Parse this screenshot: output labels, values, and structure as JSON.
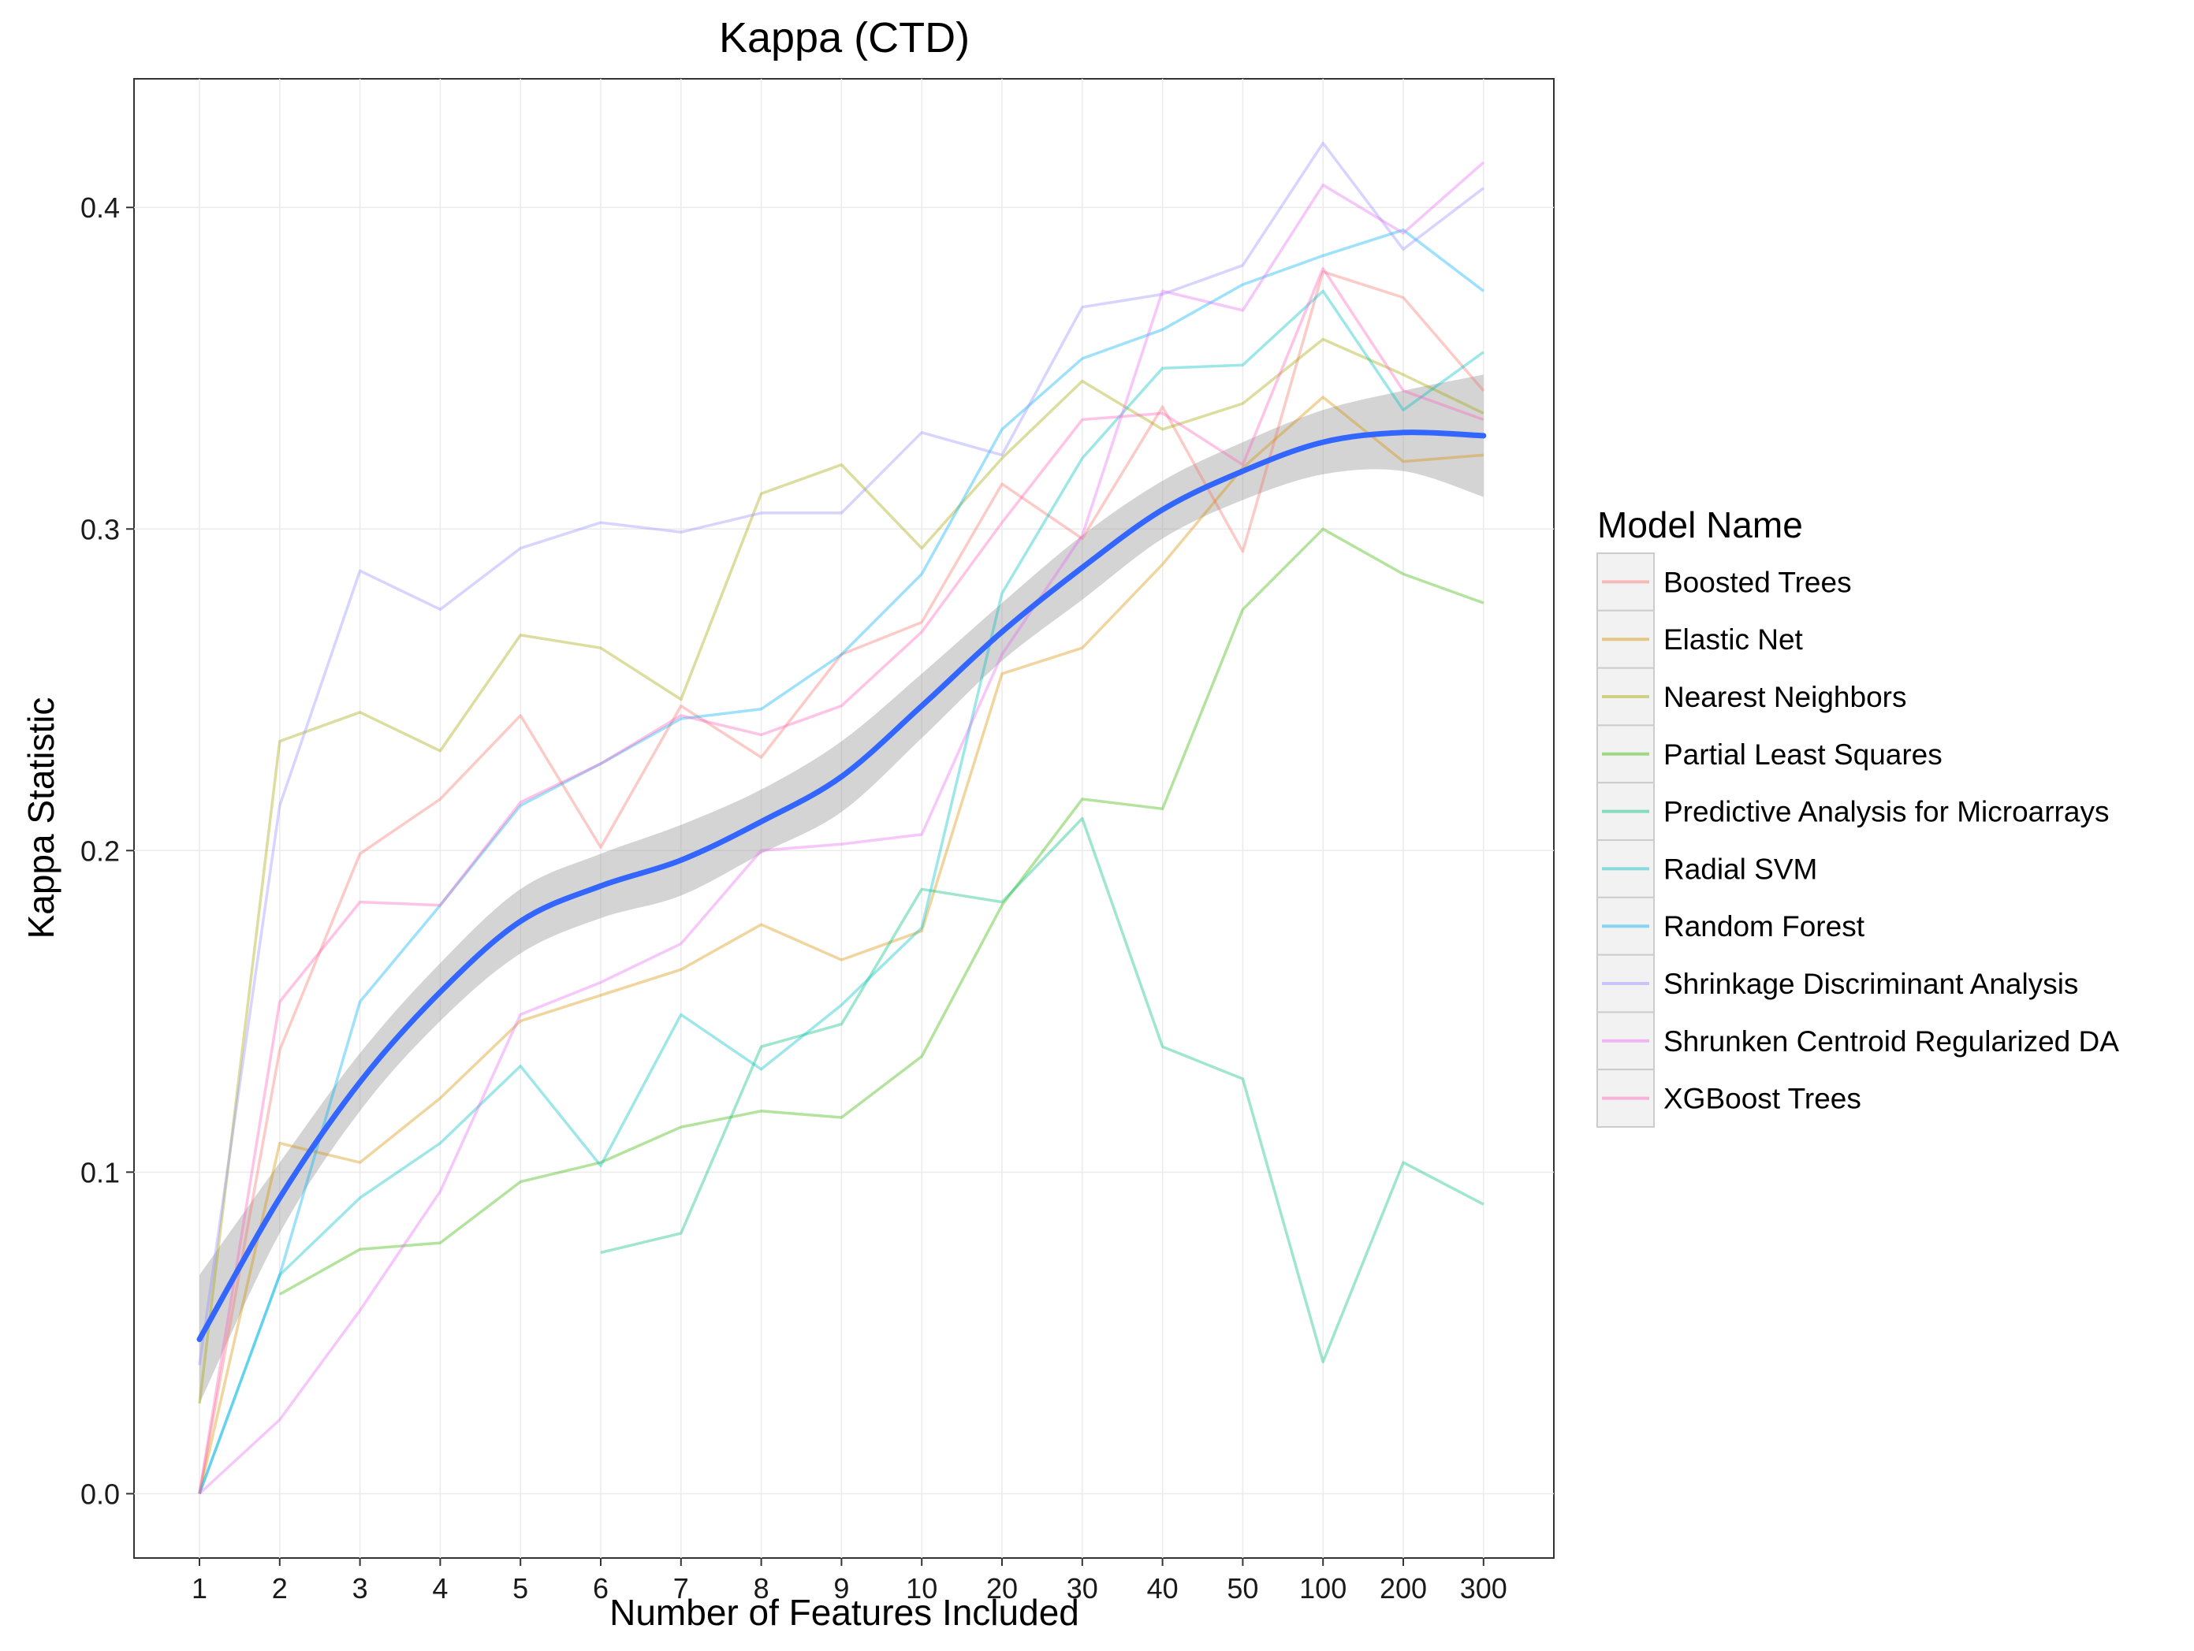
{
  "chart_data": {
    "type": "line",
    "title": "Kappa (CTD)",
    "xlabel": "Number of Features Included",
    "ylabel": "Kappa Statistic",
    "categories": [
      "1",
      "2",
      "3",
      "4",
      "5",
      "6",
      "7",
      "8",
      "9",
      "10",
      "20",
      "30",
      "40",
      "50",
      "100",
      "200",
      "300"
    ],
    "y_ticks": [
      "0.0",
      "0.1",
      "0.2",
      "0.3",
      "0.4"
    ],
    "ylim": [
      -0.02,
      0.44
    ],
    "grid": true,
    "legend_title": "Model Name",
    "legend_position": "right",
    "series": [
      {
        "name": "Boosted Trees",
        "color": "#F8766D",
        "values": [
          0.0,
          0.138,
          0.199,
          0.216,
          0.242,
          0.201,
          0.245,
          0.229,
          0.261,
          0.271,
          0.314,
          0.297,
          0.338,
          0.293,
          0.38,
          0.372,
          0.343
        ]
      },
      {
        "name": "Elastic Net",
        "color": "#D89000",
        "values": [
          0.0,
          0.109,
          0.103,
          0.123,
          0.147,
          0.155,
          0.163,
          0.177,
          0.166,
          0.175,
          0.255,
          0.263,
          0.289,
          0.319,
          0.341,
          0.321,
          0.323
        ]
      },
      {
        "name": "Nearest Neighbors",
        "color": "#A3A500",
        "values": [
          0.028,
          0.234,
          0.243,
          0.231,
          0.267,
          0.263,
          0.247,
          0.311,
          0.32,
          0.294,
          0.322,
          0.346,
          0.331,
          0.339,
          0.359,
          0.348,
          0.336
        ]
      },
      {
        "name": "Partial Least Squares",
        "color": "#39B600",
        "values": [
          null,
          0.062,
          0.076,
          0.078,
          0.097,
          0.103,
          0.114,
          0.119,
          0.117,
          0.136,
          0.183,
          0.216,
          0.213,
          0.275,
          0.3,
          0.286,
          0.277
        ]
      },
      {
        "name": "Predictive Analysis for Microarrays",
        "color": "#00BF7D",
        "values": [
          null,
          null,
          null,
          null,
          null,
          0.075,
          0.081,
          0.139,
          0.146,
          0.188,
          0.184,
          0.21,
          0.139,
          0.129,
          0.041,
          0.103,
          0.09
        ]
      },
      {
        "name": "Radial SVM",
        "color": "#00BFC4",
        "values": [
          0.0,
          0.068,
          0.092,
          0.109,
          0.133,
          0.102,
          0.149,
          0.132,
          0.152,
          0.176,
          0.28,
          0.322,
          0.35,
          0.351,
          0.374,
          0.337,
          0.355
        ]
      },
      {
        "name": "Random Forest",
        "color": "#00B0F6",
        "values": [
          0.0,
          0.068,
          0.153,
          0.183,
          0.214,
          0.227,
          0.241,
          0.244,
          0.261,
          0.286,
          0.331,
          0.353,
          0.362,
          0.376,
          0.385,
          0.393,
          0.374
        ]
      },
      {
        "name": "Shrinkage Discriminant Analysis",
        "color": "#9590FF",
        "values": [
          0.04,
          0.214,
          0.287,
          0.275,
          0.294,
          0.302,
          0.299,
          0.305,
          0.305,
          0.33,
          0.323,
          0.369,
          0.373,
          0.382,
          0.42,
          0.387,
          0.406
        ]
      },
      {
        "name": "Shrunken Centroid Regularized DA",
        "color": "#E76BF3",
        "values": [
          0.0,
          0.023,
          0.057,
          0.094,
          0.149,
          0.159,
          0.171,
          0.2,
          0.202,
          0.205,
          0.261,
          0.298,
          0.374,
          0.368,
          0.407,
          0.392,
          0.414
        ]
      },
      {
        "name": "XGBoost Trees",
        "color": "#FF62BC",
        "values": [
          0.0,
          0.153,
          0.184,
          0.183,
          0.215,
          0.227,
          0.242,
          0.236,
          0.245,
          0.268,
          0.302,
          0.334,
          0.336,
          0.32,
          0.381,
          0.343,
          0.334
        ]
      }
    ],
    "smooth": {
      "color": "#3366FF",
      "band_color": "#999999",
      "values": [
        0.048,
        0.092,
        0.128,
        0.156,
        0.178,
        0.189,
        0.197,
        0.209,
        0.223,
        0.245,
        0.268,
        0.288,
        0.306,
        0.318,
        0.327,
        0.33,
        0.329
      ],
      "lower": [
        0.028,
        0.081,
        0.119,
        0.147,
        0.168,
        0.179,
        0.186,
        0.199,
        0.212,
        0.235,
        0.259,
        0.278,
        0.297,
        0.309,
        0.317,
        0.318,
        0.31
      ],
      "upper": [
        0.068,
        0.103,
        0.137,
        0.165,
        0.188,
        0.199,
        0.208,
        0.219,
        0.234,
        0.255,
        0.277,
        0.298,
        0.315,
        0.327,
        0.337,
        0.343,
        0.348
      ]
    }
  }
}
